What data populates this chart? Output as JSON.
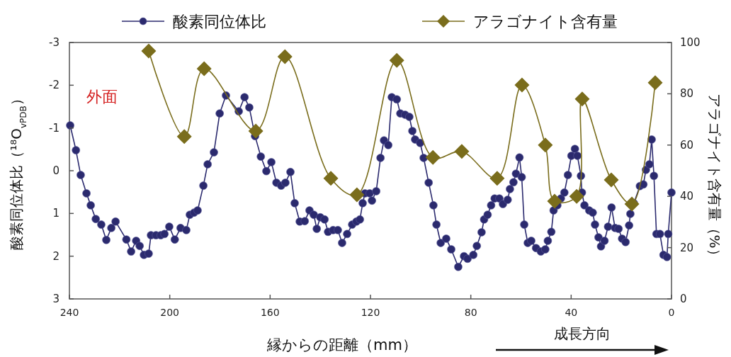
{
  "chart_data": {
    "type": "line",
    "xlabel": "縁からの距離（mm）",
    "ylabel": "酸素同位体比（¹⁸O$_{vPDB}$）",
    "y2label": "アラゴナイト含有量（%）",
    "annotations": [
      "外面",
      "成長方向"
    ],
    "xlim": [
      240,
      0
    ],
    "xticks": [
      240,
      200,
      160,
      120,
      80,
      40,
      0
    ],
    "ylim": [
      3,
      -3
    ],
    "yticks": [
      -3,
      -2,
      -1,
      0,
      1,
      2,
      3
    ],
    "y2lim": [
      0,
      100
    ],
    "y2ticks": [
      0,
      20,
      40,
      60,
      80,
      100
    ],
    "legend": "top",
    "grid": false,
    "series": [
      {
        "name": "酸素同位体比",
        "marker": "circle",
        "color": "#2b2a6e",
        "x": [
          239.7,
          237.4,
          235.5,
          233.2,
          231.5,
          229.5,
          227.3,
          225.3,
          223.3,
          221.6,
          217.3,
          215.4,
          213.4,
          212,
          210.3,
          208.4,
          207.5,
          205.5,
          203.6,
          202.1,
          200.2,
          198,
          195.7,
          193.4,
          192,
          190.3,
          188.9,
          186.6,
          184.9,
          182.4,
          180.1,
          177.6,
          172.5,
          170.2,
          168.3,
          166,
          163.7,
          161.5,
          159.5,
          157.5,
          155.6,
          153.9,
          151.9,
          150.2,
          148.2,
          146.2,
          144.3,
          142.6,
          141.4,
          140,
          138.3,
          136.9,
          134.9,
          133,
          131.3,
          129.3,
          127.3,
          125.6,
          124.2,
          123.1,
          122.2,
          120.3,
          119.4,
          117.7,
          116,
          114.6,
          112.9,
          111.5,
          109.5,
          108.1,
          106.2,
          104.5,
          103.3,
          102.2,
          100.2,
          98.8,
          96.8,
          94.9,
          93.7,
          92,
          89.8,
          87.8,
          85,
          82.7,
          81.3,
          79,
          77.6,
          75.7,
          74.7,
          73.3,
          71.9,
          70.5,
          68.6,
          67.2,
          65.3,
          64.4,
          63,
          62,
          60.6,
          59.7,
          58.7,
          57.3,
          55.9,
          54,
          52.1,
          50.3,
          49.3,
          47.9,
          47,
          45.5,
          44.1,
          42.7,
          41.3,
          39.9,
          38.5,
          37.5,
          36.1,
          35.7,
          34.7,
          32.8,
          31.4,
          30.5,
          29.1,
          28.1,
          26.7,
          25.3,
          23.9,
          22.5,
          21.1,
          19.7,
          18.3,
          16.9,
          16.4,
          15,
          12.6,
          11.2,
          10.2,
          8.8,
          7.9,
          7,
          6,
          4.6,
          3.2,
          1.8,
          1.3,
          0
        ],
        "values": [
          -1.06,
          -0.48,
          0.1,
          0.53,
          0.81,
          1.13,
          1.26,
          1.62,
          1.34,
          1.19,
          1.61,
          1.89,
          1.64,
          1.76,
          1.97,
          1.94,
          1.51,
          1.51,
          1.51,
          1.48,
          1.31,
          1.61,
          1.34,
          1.39,
          1.03,
          0.98,
          0.93,
          0.35,
          -0.15,
          -0.43,
          -1.34,
          -1.76,
          -1.39,
          -1.72,
          -1.48,
          -0.81,
          -0.33,
          0.01,
          -0.2,
          0.28,
          0.35,
          0.28,
          0.03,
          0.76,
          1.19,
          1.18,
          0.93,
          1.03,
          1.36,
          1.09,
          1.14,
          1.43,
          1.39,
          1.39,
          1.69,
          1.48,
          1.26,
          1.19,
          1.14,
          0.76,
          0.53,
          0.53,
          0.7,
          0.48,
          -0.3,
          -0.71,
          -0.6,
          -1.72,
          -1.67,
          -1.34,
          -1.31,
          -1.26,
          -0.93,
          -0.73,
          -0.65,
          -0.3,
          0.28,
          0.81,
          1.26,
          1.69,
          1.59,
          1.84,
          2.25,
          2,
          2.06,
          1.97,
          1.76,
          1.44,
          1.14,
          1.03,
          0.81,
          0.65,
          0.65,
          0.78,
          0.68,
          0.43,
          0.27,
          0.07,
          -0.31,
          0.15,
          1.26,
          1.69,
          1.64,
          1.81,
          1.89,
          1.84,
          1.64,
          1.43,
          0.93,
          0.81,
          0.65,
          0.51,
          0.1,
          -0.35,
          -0.51,
          -0.35,
          0.12,
          0.51,
          0.81,
          0.93,
          0.98,
          1.26,
          1.56,
          1.77,
          1.64,
          1.31,
          0.86,
          1.34,
          1.36,
          1.59,
          1.67,
          1.28,
          1.01,
          0.76,
          0.36,
          0.32,
          -0.02,
          -0.15,
          -0.73,
          0.12,
          1.48,
          1.48,
          1.97,
          2.02,
          1.48,
          0.51
        ]
      },
      {
        "name": "アラゴナイト含有量",
        "axis": "y2",
        "marker": "diamond",
        "color": "#7a6d1c",
        "x": [
          208.4,
          194.2,
          186.3,
          165.7,
          154.1,
          135.8,
          125.4,
          109.5,
          95.1,
          83.6,
          69.5,
          59.6,
          50.3,
          46.6,
          37.8,
          35.6,
          24,
          15.8,
          6.5
        ],
        "values": [
          96.7,
          63.3,
          89.8,
          65.5,
          94.5,
          47,
          40.6,
          93,
          55.2,
          57.5,
          47,
          83.4,
          60,
          38.1,
          40,
          78,
          46.4,
          37,
          84.3
        ]
      }
    ]
  }
}
